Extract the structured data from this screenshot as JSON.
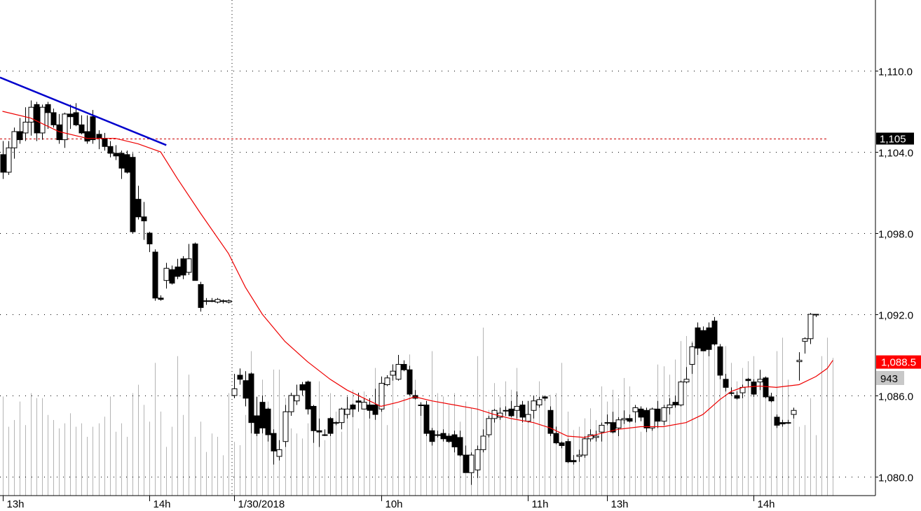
{
  "chart_data": {
    "type": "candlestick",
    "y_axis": {
      "range": [
        1078.0,
        1114.0
      ],
      "ticks": [
        {
          "value": 1110.0,
          "label": "1,110.0"
        },
        {
          "value": 1104.0,
          "label": "1,104.0"
        },
        {
          "value": 1098.0,
          "label": "1,098.0"
        },
        {
          "value": 1092.0,
          "label": "1,092.0"
        },
        {
          "value": 1086.0,
          "label": "1,086.0"
        },
        {
          "value": 1080.0,
          "label": "1,080.0"
        }
      ],
      "grid": "dotted"
    },
    "x_axis": {
      "labels": [
        {
          "index": 0,
          "label": "13h"
        },
        {
          "index": 26,
          "label": "14h"
        },
        {
          "index": 41,
          "label": "1/30/2018"
        },
        {
          "index": 67,
          "label": "10h"
        },
        {
          "index": 93,
          "label": "11h"
        },
        {
          "index": 107,
          "label": "13h"
        },
        {
          "index": 133,
          "label": "14h"
        }
      ],
      "session_divider_index": 41
    },
    "reference_line": {
      "value": 1105.0,
      "label": "1,105",
      "color": "#cc0000"
    },
    "trend_line": {
      "from": {
        "index": 0,
        "price": 1109.5
      },
      "to": {
        "index": 29,
        "price": 1104.5
      },
      "color": "#0000cc"
    },
    "moving_average": {
      "color": "#ee0000",
      "points": [
        [
          0,
          1107.0
        ],
        [
          5,
          1106.5
        ],
        [
          10,
          1105.5
        ],
        [
          15,
          1105.0
        ],
        [
          20,
          1105.0
        ],
        [
          24,
          1104.6
        ],
        [
          28,
          1104.0
        ],
        [
          31,
          1102.0
        ],
        [
          35,
          1099.5
        ],
        [
          40,
          1096.5
        ],
        [
          43,
          1094.0
        ],
        [
          46,
          1092.0
        ],
        [
          50,
          1090.0
        ],
        [
          54,
          1088.5
        ],
        [
          58,
          1087.2
        ],
        [
          61,
          1086.4
        ],
        [
          64,
          1085.8
        ],
        [
          67,
          1085.2
        ],
        [
          70,
          1085.5
        ],
        [
          73,
          1085.9
        ],
        [
          76,
          1085.6
        ],
        [
          80,
          1085.3
        ],
        [
          84,
          1085.0
        ],
        [
          87,
          1084.6
        ],
        [
          90,
          1084.3
        ],
        [
          94,
          1084.0
        ],
        [
          97,
          1083.6
        ],
        [
          100,
          1083.0
        ],
        [
          103,
          1082.9
        ],
        [
          106,
          1083.2
        ],
        [
          109,
          1083.5
        ],
        [
          113,
          1083.7
        ],
        [
          117,
          1083.7
        ],
        [
          121,
          1084.0
        ],
        [
          124,
          1084.6
        ],
        [
          127,
          1085.7
        ],
        [
          129,
          1086.3
        ],
        [
          131,
          1086.6
        ],
        [
          134,
          1086.7
        ],
        [
          137,
          1086.6
        ],
        [
          141,
          1086.8
        ],
        [
          144,
          1087.4
        ],
        [
          146,
          1088.0
        ],
        [
          147,
          1088.6
        ]
      ]
    },
    "last_price": {
      "label": "1,088.5",
      "value": 1088.5,
      "color": "#ff0000"
    },
    "last_volume": {
      "label": "943",
      "value": 943
    },
    "candles_o_h_l_c": [
      [
        1103.8,
        1104.8,
        1102.0,
        1102.5
      ],
      [
        1102.5,
        1104.8,
        1102.3,
        1104.3
      ],
      [
        1104.3,
        1105.8,
        1103.5,
        1105.5
      ],
      [
        1105.5,
        1106.5,
        1104.6,
        1104.9
      ],
      [
        1105.4,
        1107.3,
        1104.8,
        1106.2
      ],
      [
        1106.2,
        1107.8,
        1105.2,
        1107.3
      ],
      [
        1107.5,
        1107.7,
        1104.8,
        1105.4
      ],
      [
        1105.4,
        1107.5,
        1104.9,
        1107.3
      ],
      [
        1107.5,
        1107.7,
        1105.7,
        1106.9
      ],
      [
        1106.9,
        1107.2,
        1105.8,
        1106.0
      ],
      [
        1106.0,
        1106.8,
        1104.6,
        1104.9
      ],
      [
        1104.9,
        1106.9,
        1104.3,
        1106.8
      ],
      [
        1106.8,
        1107.5,
        1105.7,
        1106.6
      ],
      [
        1106.9,
        1107.6,
        1105.9,
        1106.0
      ],
      [
        1106.0,
        1106.7,
        1105.3,
        1105.4
      ],
      [
        1105.5,
        1106.7,
        1104.6,
        1104.8
      ],
      [
        1106.6,
        1107.1,
        1104.6,
        1104.9
      ],
      [
        1105.3,
        1105.6,
        1104.2,
        1105.0
      ],
      [
        1105.0,
        1105.4,
        1104.1,
        1104.4
      ],
      [
        1104.4,
        1104.8,
        1103.6,
        1103.9
      ],
      [
        1103.9,
        1104.5,
        1103.4,
        1103.7
      ],
      [
        1103.9,
        1104.1,
        1102.0,
        1102.8
      ],
      [
        1103.8,
        1104.1,
        1102.4,
        1102.5
      ],
      [
        1103.6,
        1103.9,
        1098.0,
        1098.1
      ],
      [
        1100.5,
        1101.5,
        1099.0,
        1099.2
      ],
      [
        1099.2,
        1100.3,
        1097.5,
        1098.9
      ],
      [
        1098.0,
        1098.1,
        1096.6,
        1097.2
      ],
      [
        1096.6,
        1096.8,
        1093.0,
        1093.2
      ],
      [
        1093.2,
        1093.4,
        1093.0,
        1093.1
      ],
      [
        1094.5,
        1095.8,
        1093.9,
        1095.4
      ],
      [
        1095.3,
        1095.6,
        1094.2,
        1094.3
      ],
      [
        1095.5,
        1096.1,
        1094.6,
        1094.8
      ],
      [
        1096.1,
        1096.3,
        1094.6,
        1094.9
      ],
      [
        1095.1,
        1097.2,
        1094.9,
        1096.1
      ],
      [
        1097.2,
        1097.3,
        1094.5,
        1094.5
      ],
      [
        1094.2,
        1094.4,
        1092.2,
        1092.5
      ],
      [
        1093.0,
        1093.2,
        1092.7,
        1093.0
      ],
      [
        1093.0,
        1093.2,
        1092.9,
        1093.0
      ],
      [
        1092.9,
        1093.2,
        1092.8,
        1093.1
      ],
      [
        1093.0,
        1093.1,
        1092.8,
        1093.0
      ],
      [
        1092.9,
        1093.1,
        1092.8,
        1093.0
      ],
      [
        1086.0,
        1087.6,
        1085.8,
        1086.5
      ],
      [
        1087.5,
        1088.0,
        1086.8,
        1087.2
      ],
      [
        1087.1,
        1087.8,
        1085.2,
        1085.8
      ],
      [
        1087.6,
        1087.7,
        1083.2,
        1084.0
      ],
      [
        1084.5,
        1085.9,
        1083.0,
        1083.2
      ],
      [
        1085.5,
        1086.0,
        1083.2,
        1083.6
      ],
      [
        1085.0,
        1085.1,
        1082.6,
        1083.1
      ],
      [
        1083.2,
        1083.5,
        1080.9,
        1081.9
      ],
      [
        1081.5,
        1082.7,
        1081.2,
        1082.0
      ],
      [
        1082.6,
        1085.3,
        1082.2,
        1084.8
      ],
      [
        1084.8,
        1086.2,
        1084.5,
        1086.0
      ],
      [
        1085.6,
        1086.8,
        1085.3,
        1086.0
      ],
      [
        1086.8,
        1087.0,
        1086.0,
        1086.4
      ],
      [
        1087.0,
        1087.1,
        1084.6,
        1085.0
      ],
      [
        1085.2,
        1085.3,
        1082.5,
        1083.4
      ],
      [
        1083.4,
        1084.3,
        1082.2,
        1083.3
      ],
      [
        1083.1,
        1083.5,
        1083.0,
        1083.1
      ],
      [
        1084.3,
        1084.4,
        1083.0,
        1083.2
      ],
      [
        1084.0,
        1084.1,
        1083.8,
        1084.0
      ],
      [
        1084.0,
        1085.1,
        1083.5,
        1085.0
      ],
      [
        1084.6,
        1085.9,
        1084.3,
        1085.0
      ],
      [
        1085.3,
        1085.4,
        1084.4,
        1085.0
      ],
      [
        1085.6,
        1086.2,
        1084.8,
        1085.5
      ],
      [
        1085.0,
        1085.8,
        1085.0,
        1085.5
      ],
      [
        1085.3,
        1085.8,
        1084.3,
        1084.9
      ],
      [
        1085.3,
        1086.5,
        1084.2,
        1084.6
      ],
      [
        1085.0,
        1087.4,
        1084.8,
        1086.9
      ],
      [
        1086.8,
        1087.5,
        1086.7,
        1087.3
      ],
      [
        1087.5,
        1088.3,
        1087.1,
        1087.8
      ],
      [
        1087.2,
        1089.0,
        1087.1,
        1088.3
      ],
      [
        1088.3,
        1088.6,
        1087.8,
        1087.9
      ],
      [
        1087.9,
        1088.2,
        1086.0,
        1086.1
      ],
      [
        1086.0,
        1086.4,
        1085.7,
        1085.8
      ],
      [
        1085.3,
        1085.5,
        1084.5,
        1085.3
      ],
      [
        1085.3,
        1085.6,
        1083.0,
        1083.2
      ],
      [
        1083.4,
        1083.6,
        1082.3,
        1082.6
      ],
      [
        1083.1,
        1083.4,
        1082.9,
        1083.1
      ],
      [
        1083.2,
        1083.5,
        1082.6,
        1082.8
      ],
      [
        1083.0,
        1083.2,
        1082.5,
        1082.6
      ],
      [
        1083.1,
        1083.4,
        1081.8,
        1082.2
      ],
      [
        1082.9,
        1083.4,
        1081.5,
        1081.6
      ],
      [
        1081.6,
        1082.3,
        1080.3,
        1080.3
      ],
      [
        1080.3,
        1081.8,
        1079.4,
        1081.6
      ],
      [
        1080.5,
        1082.3,
        1079.9,
        1082.0
      ],
      [
        1082.0,
        1083.5,
        1081.8,
        1083.0
      ],
      [
        1083.1,
        1084.5,
        1082.9,
        1084.3
      ],
      [
        1084.3,
        1085.0,
        1084.0,
        1084.9
      ],
      [
        1084.4,
        1085.1,
        1084.2,
        1084.7
      ],
      [
        1084.9,
        1085.2,
        1084.5,
        1084.9
      ],
      [
        1085.0,
        1085.6,
        1084.4,
        1084.5
      ],
      [
        1084.9,
        1086.3,
        1084.3,
        1085.2
      ],
      [
        1085.3,
        1085.6,
        1084.0,
        1084.4
      ],
      [
        1084.1,
        1085.6,
        1084.0,
        1084.6
      ],
      [
        1084.9,
        1086.0,
        1084.3,
        1085.6
      ],
      [
        1085.3,
        1085.9,
        1085.1,
        1085.7
      ],
      [
        1085.9,
        1086.0,
        1085.6,
        1085.8
      ],
      [
        1084.9,
        1085.2,
        1083.0,
        1083.2
      ],
      [
        1083.2,
        1083.7,
        1082.4,
        1082.5
      ],
      [
        1082.5,
        1082.6,
        1082.1,
        1082.3
      ],
      [
        1082.6,
        1082.8,
        1081.0,
        1081.1
      ],
      [
        1081.2,
        1081.6,
        1080.9,
        1081.1
      ],
      [
        1081.5,
        1082.0,
        1081.1,
        1081.6
      ],
      [
        1081.6,
        1083.0,
        1081.4,
        1082.8
      ],
      [
        1082.8,
        1083.5,
        1082.6,
        1083.1
      ],
      [
        1082.9,
        1083.4,
        1082.6,
        1083.0
      ],
      [
        1083.3,
        1084.0,
        1082.6,
        1083.8
      ],
      [
        1084.0,
        1084.6,
        1083.8,
        1084.0
      ],
      [
        1084.0,
        1084.8,
        1083.2,
        1083.3
      ],
      [
        1083.6,
        1084.4,
        1083.0,
        1084.2
      ],
      [
        1084.2,
        1084.9,
        1083.9,
        1084.3
      ],
      [
        1084.3,
        1084.6,
        1084.0,
        1084.1
      ],
      [
        1084.8,
        1085.3,
        1084.0,
        1085.1
      ],
      [
        1085.0,
        1085.2,
        1084.1,
        1084.4
      ],
      [
        1084.9,
        1085.1,
        1083.3,
        1083.6
      ],
      [
        1083.6,
        1085.1,
        1083.4,
        1085.0
      ],
      [
        1085.0,
        1085.6,
        1083.6,
        1084.1
      ],
      [
        1084.1,
        1085.3,
        1083.8,
        1085.1
      ],
      [
        1085.1,
        1085.8,
        1084.6,
        1085.3
      ],
      [
        1085.5,
        1086.0,
        1085.1,
        1085.3
      ],
      [
        1085.3,
        1087.1,
        1085.2,
        1087.0
      ],
      [
        1087.0,
        1088.1,
        1086.9,
        1087.2
      ],
      [
        1088.3,
        1089.9,
        1087.6,
        1089.6
      ],
      [
        1091.0,
        1091.4,
        1089.0,
        1089.5
      ],
      [
        1090.8,
        1091.1,
        1089.3,
        1089.3
      ],
      [
        1091.0,
        1091.4,
        1088.9,
        1089.4
      ],
      [
        1091.5,
        1091.8,
        1089.7,
        1089.8
      ],
      [
        1089.6,
        1089.8,
        1087.2,
        1087.5
      ],
      [
        1087.2,
        1087.6,
        1086.3,
        1086.6
      ],
      [
        1086.2,
        1086.6,
        1086.0,
        1086.2
      ],
      [
        1086.0,
        1086.3,
        1085.7,
        1085.8
      ],
      [
        1086.2,
        1086.8,
        1085.8,
        1086.6
      ],
      [
        1087.2,
        1087.3,
        1086.6,
        1087.1
      ],
      [
        1087.0,
        1087.2,
        1085.9,
        1086.1
      ],
      [
        1087.0,
        1087.9,
        1086.4,
        1087.2
      ],
      [
        1087.3,
        1087.4,
        1085.8,
        1085.9
      ],
      [
        1085.9,
        1086.2,
        1085.5,
        1085.6
      ],
      [
        1084.4,
        1084.6,
        1083.6,
        1083.8
      ],
      [
        1084.0,
        1084.2,
        1083.7,
        1083.9
      ],
      [
        1084.0,
        1084.2,
        1083.9,
        1084.0
      ],
      [
        1084.6,
        1085.1,
        1084.3,
        1084.9
      ],
      [
        1088.5,
        1089.2,
        1087.1,
        1088.6
      ],
      [
        1090.0,
        1090.3,
        1089.1,
        1090.2
      ],
      [
        1090.2,
        1092.1,
        1089.8,
        1092.0
      ],
      [
        1092.0,
        1092.0,
        1091.8,
        1092.0
      ]
    ],
    "volume_heights_pct": [
      59,
      41,
      45,
      56,
      42,
      61,
      58,
      58,
      48,
      45,
      40,
      43,
      49,
      41,
      43,
      35,
      41,
      43,
      47,
      59,
      38,
      43,
      35,
      61,
      66,
      54,
      44,
      79,
      50,
      29,
      41,
      83,
      48,
      72,
      35,
      44,
      26,
      37,
      35,
      24,
      61,
      32,
      30,
      48,
      86,
      59,
      69,
      56,
      75,
      75,
      58,
      40,
      37,
      34,
      43,
      53,
      68,
      33,
      61,
      50,
      38,
      58,
      63,
      40,
      62,
      51,
      76,
      63,
      42,
      74,
      52,
      58,
      84,
      69,
      53,
      56,
      86,
      61,
      59,
      54,
      61,
      44,
      56,
      52,
      83,
      100,
      51,
      67,
      59,
      68,
      63,
      76,
      43,
      53,
      59,
      68,
      58,
      60,
      61,
      79,
      50,
      39,
      41,
      46,
      52,
      45,
      65,
      56,
      63,
      58,
      70,
      65,
      49,
      38,
      51,
      42,
      78,
      77,
      72,
      81,
      92,
      95,
      92,
      96,
      96,
      100,
      91,
      88,
      89,
      79,
      68,
      76,
      80,
      83,
      67,
      70,
      59,
      86,
      94,
      69,
      49,
      41,
      42,
      58,
      36,
      83,
      94,
      82
    ]
  }
}
